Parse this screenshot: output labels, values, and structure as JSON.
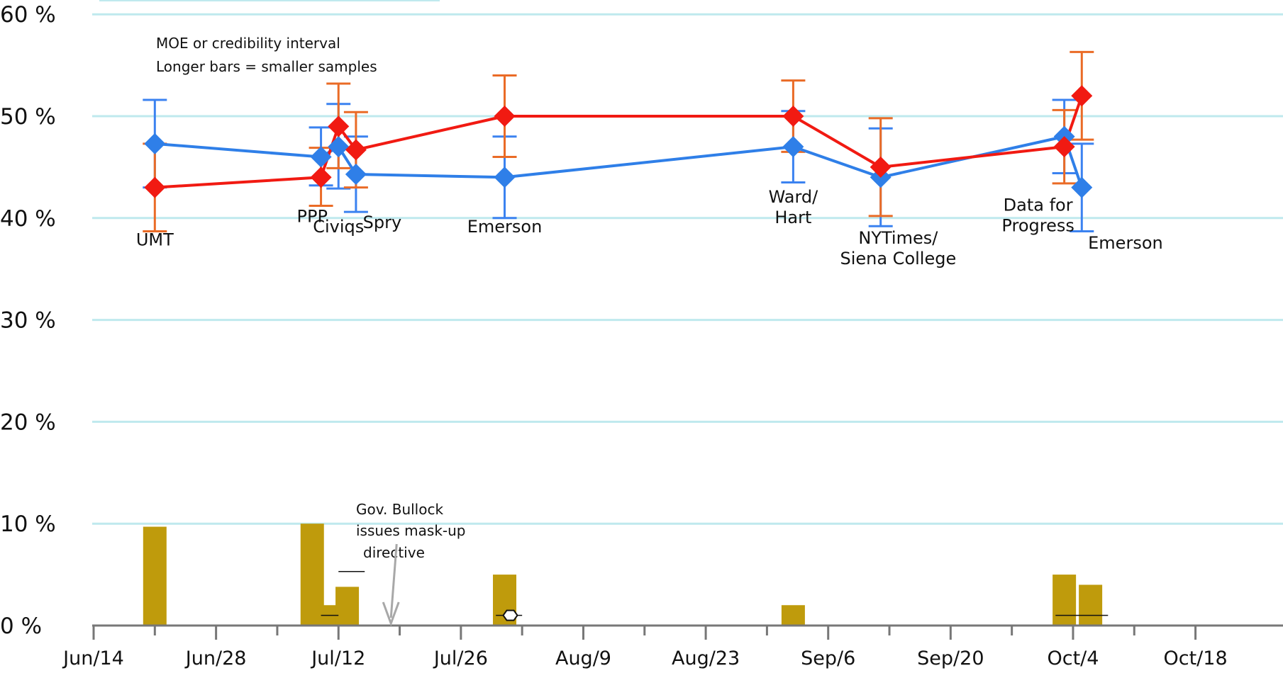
{
  "colors": {
    "grid": "#bfe9ee",
    "blue_series": "#2f7fe8",
    "red_series": "#f11a12",
    "blue_error": "#3b82f0",
    "red_error": "#ea6b26",
    "bars": "#bf9b0c",
    "axis": "#777777"
  },
  "chart_data": {
    "type": "line",
    "title": "",
    "xlabel": "",
    "ylabel": "",
    "ylim": [
      0,
      60
    ],
    "y_ticks": [
      {
        "value": 0,
        "label": "0 %"
      },
      {
        "value": 10,
        "label": "10 %"
      },
      {
        "value": 20,
        "label": "20 %"
      },
      {
        "value": 30,
        "label": "30 %"
      },
      {
        "value": 40,
        "label": "40 %"
      },
      {
        "value": 50,
        "label": "50 %"
      },
      {
        "value": 60,
        "label": "60 %"
      }
    ],
    "x_ticks": [
      {
        "date": "2020-06-14",
        "label": "Jun/14"
      },
      {
        "date": "2020-06-28",
        "label": "Jun/28"
      },
      {
        "date": "2020-07-12",
        "label": "Jul/12"
      },
      {
        "date": "2020-07-26",
        "label": "Jul/26"
      },
      {
        "date": "2020-08-09",
        "label": "Aug/9"
      },
      {
        "date": "2020-08-23",
        "label": "Aug/23"
      },
      {
        "date": "2020-09-06",
        "label": "Sep/6"
      },
      {
        "date": "2020-09-20",
        "label": "Sep/20"
      },
      {
        "date": "2020-10-04",
        "label": "Oct/4"
      },
      {
        "date": "2020-10-18",
        "label": "Oct/18"
      }
    ],
    "xlim": [
      "2020-06-14",
      "2020-10-24"
    ],
    "grid": true,
    "series": [
      {
        "color_key": "blue_series",
        "error_color_key": "blue_error",
        "points": [
          {
            "date": "2020-06-21",
            "value": 47.3,
            "low": 43.0,
            "high": 51.6
          },
          {
            "date": "2020-07-10",
            "value": 46.0,
            "low": 43.2,
            "high": 48.9
          },
          {
            "date": "2020-07-12",
            "value": 47.0,
            "low": 42.9,
            "high": 51.2
          },
          {
            "date": "2020-07-14",
            "value": 44.3,
            "low": 40.6,
            "high": 48.0
          },
          {
            "date": "2020-07-31",
            "value": 44.0,
            "low": 40.0,
            "high": 48.0
          },
          {
            "date": "2020-09-02",
            "value": 47.0,
            "low": 43.5,
            "high": 50.5
          },
          {
            "date": "2020-09-12",
            "value": 44.0,
            "low": 39.2,
            "high": 48.8
          },
          {
            "date": "2020-10-03",
            "value": 48.0,
            "low": 44.4,
            "high": 51.6
          },
          {
            "date": "2020-10-05",
            "value": 43.0,
            "low": 38.7,
            "high": 47.3
          }
        ]
      },
      {
        "color_key": "red_series",
        "error_color_key": "red_error",
        "points": [
          {
            "date": "2020-06-21",
            "value": 43.0,
            "low": 38.7,
            "high": 47.3
          },
          {
            "date": "2020-07-10",
            "value": 44.0,
            "low": 41.2,
            "high": 46.9
          },
          {
            "date": "2020-07-12",
            "value": 49.0,
            "low": 44.9,
            "high": 53.2
          },
          {
            "date": "2020-07-14",
            "value": 46.7,
            "low": 43.0,
            "high": 50.4
          },
          {
            "date": "2020-07-31",
            "value": 50.0,
            "low": 46.0,
            "high": 54.0
          },
          {
            "date": "2020-09-02",
            "value": 50.0,
            "low": 46.5,
            "high": 53.5
          },
          {
            "date": "2020-09-12",
            "value": 45.0,
            "low": 40.2,
            "high": 49.8
          },
          {
            "date": "2020-10-03",
            "value": 47.0,
            "low": 43.4,
            "high": 50.6
          },
          {
            "date": "2020-10-05",
            "value": 52.0,
            "low": 47.7,
            "high": 56.3
          }
        ]
      }
    ],
    "poll_labels": [
      {
        "date": "2020-06-21",
        "value": 37.3,
        "lines": [
          "UMT"
        ]
      },
      {
        "date": "2020-07-09",
        "value": 39.6,
        "lines": [
          "PPP"
        ]
      },
      {
        "date": "2020-07-12",
        "value": 38.6,
        "lines": [
          "Civiqs"
        ]
      },
      {
        "date": "2020-07-17",
        "value": 39.0,
        "lines": [
          "Spry"
        ]
      },
      {
        "date": "2020-07-31",
        "value": 38.6,
        "lines": [
          "Emerson"
        ]
      },
      {
        "date": "2020-09-02",
        "value": 41.5,
        "lines": [
          "Ward/",
          "Hart"
        ]
      },
      {
        "date": "2020-09-14",
        "value": 37.5,
        "lines": [
          "NYTimes/",
          "Siena College"
        ]
      },
      {
        "date": "2020-09-30",
        "value": 40.7,
        "lines": [
          "Data for",
          "Progress"
        ]
      },
      {
        "date": "2020-10-10",
        "value": 37.0,
        "lines": [
          "Emerson"
        ]
      }
    ],
    "bars": [
      {
        "date": "2020-06-21",
        "value": 9.7
      },
      {
        "date": "2020-07-09",
        "value": 10.0
      },
      {
        "date": "2020-07-11",
        "value": 2.0
      },
      {
        "date": "2020-07-13",
        "value": 3.8
      },
      {
        "date": "2020-07-31",
        "value": 5.0
      },
      {
        "date": "2020-09-02",
        "value": 2.0
      },
      {
        "date": "2020-10-03",
        "value": 5.0
      },
      {
        "date": "2020-10-06",
        "value": 4.0
      }
    ],
    "bar_markers": [
      {
        "from": "2020-07-10",
        "to": "2020-07-12",
        "value": 1.0
      },
      {
        "from": "2020-07-12",
        "to": "2020-07-15",
        "value": 5.3
      },
      {
        "from": "2020-07-30",
        "to": "2020-08-02",
        "value": 1.0
      },
      {
        "from": "2020-10-02",
        "to": "2020-10-08",
        "value": 1.0
      }
    ],
    "annotations": {
      "moe_note": [
        "MOE or credibility interval",
        "Longer bars = smaller samples"
      ],
      "mask_note": [
        "Gov. Bullock",
        "issues mask-up",
        "directive"
      ],
      "mask_arrow_date": "2020-07-18"
    }
  }
}
